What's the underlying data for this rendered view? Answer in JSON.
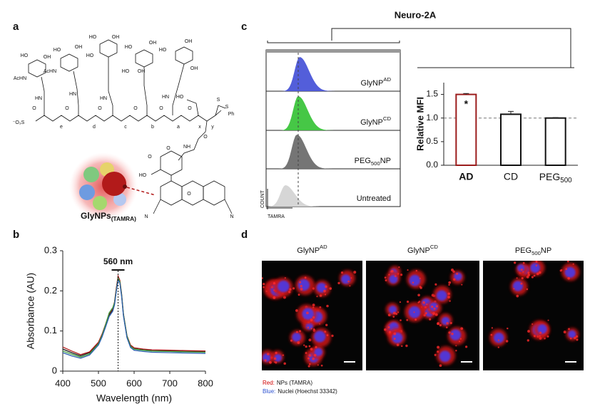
{
  "panel_labels": [
    "a",
    "b",
    "c",
    "d"
  ],
  "structure": {
    "atom_labels": [
      "HO",
      "OH",
      "AcHN",
      "HO",
      "OH",
      "AcHN",
      "HO",
      "OH",
      "HO",
      "OH",
      "HO",
      "OH",
      "HO",
      "OH",
      "HO",
      "OH",
      "HN",
      "HN",
      "HN",
      "HN",
      "O",
      "O",
      "O",
      "O",
      "O",
      "HO",
      "O",
      "S",
      "S",
      "Ph",
      "⁻O₃S",
      "e",
      "d",
      "c",
      "b",
      "a",
      "x",
      "y",
      "O",
      "NH",
      "O",
      "HO",
      "O",
      "N",
      "O",
      "N"
    ],
    "label": {
      "text": "GlyNPs",
      "sub": "(TAMRA)"
    }
  },
  "chart_data": [
    {
      "type": "line",
      "x_label": "Wavelength (nm)",
      "y_label": "Absorbance (AU)",
      "x": [
        400,
        425,
        450,
        475,
        500,
        510,
        520,
        530,
        540,
        545,
        550,
        555,
        560,
        565,
        570,
        580,
        590,
        600,
        625,
        650,
        700,
        750,
        800
      ],
      "series": [
        {
          "color": "#1a1a1a",
          "values": [
            0.055,
            0.046,
            0.038,
            0.046,
            0.071,
            0.09,
            0.114,
            0.14,
            0.153,
            0.168,
            0.203,
            0.233,
            0.222,
            0.188,
            0.14,
            0.085,
            0.063,
            0.056,
            0.053,
            0.051,
            0.05,
            0.049,
            0.048
          ]
        },
        {
          "color": "#b01c1c",
          "values": [
            0.06,
            0.05,
            0.041,
            0.048,
            0.072,
            0.092,
            0.117,
            0.143,
            0.156,
            0.172,
            0.207,
            0.237,
            0.226,
            0.192,
            0.143,
            0.088,
            0.065,
            0.058,
            0.055,
            0.053,
            0.052,
            0.051,
            0.05
          ]
        },
        {
          "color": "#3a9a3a",
          "values": [
            0.05,
            0.042,
            0.035,
            0.043,
            0.068,
            0.089,
            0.116,
            0.145,
            0.158,
            0.17,
            0.202,
            0.232,
            0.223,
            0.19,
            0.142,
            0.087,
            0.062,
            0.055,
            0.052,
            0.05,
            0.049,
            0.048,
            0.047
          ]
        },
        {
          "color": "#2c5fb0",
          "values": [
            0.046,
            0.038,
            0.032,
            0.04,
            0.065,
            0.085,
            0.11,
            0.136,
            0.149,
            0.165,
            0.198,
            0.228,
            0.219,
            0.186,
            0.138,
            0.083,
            0.059,
            0.052,
            0.049,
            0.047,
            0.046,
            0.045,
            0.044
          ]
        }
      ],
      "annotation": {
        "text": "560 nm",
        "x": 555
      },
      "xlim": [
        400,
        800
      ],
      "ylim": [
        0,
        0.3
      ],
      "xticks": [
        400,
        500,
        600,
        700,
        800
      ],
      "yticks": [
        0,
        0.1,
        0.2,
        0.3
      ]
    },
    {
      "type": "bar",
      "y_label": "Relative MFI",
      "categories": [
        "AD",
        "CD",
        {
          "text": "PEG",
          "sub": "500"
        }
      ],
      "values": [
        1.5,
        1.08,
        1.0
      ],
      "errors": [
        0.02,
        0.06,
        0.01
      ],
      "colors": [
        "#9b1c1c",
        "#111111",
        "#111111"
      ],
      "category_label_colors": [
        "#9b1c1c",
        "#111111",
        "#111111"
      ],
      "highlight": 0,
      "reference_line": 1.0,
      "annotation": {
        "text": "*",
        "category": 0
      },
      "ylim": [
        0,
        1.75
      ],
      "yticks": [
        {
          "value": 0,
          "label": "0.0"
        },
        {
          "value": 0.5,
          "label": "0.5"
        },
        {
          "value": 1,
          "label": "1.0"
        },
        {
          "value": 1.5,
          "label": "1.5"
        }
      ]
    }
  ],
  "flow": {
    "title": "Neuro-2A",
    "x_label": "TAMRA",
    "y_label": "COUNT",
    "histograms": [
      {
        "label": {
          "text": "GlyNP",
          "sup": "AD"
        },
        "color": "#4a55d8"
      },
      {
        "label": {
          "text": "GlyNP",
          "sup": "CD"
        },
        "color": "#3cc43c"
      },
      {
        "label": {
          "text": "PEG",
          "sub": "500",
          "tail": "NP"
        },
        "color": "#6e6e6e"
      },
      {
        "label": "Untreated",
        "color": "#d4d4d4"
      }
    ]
  },
  "microscopy": {
    "panels": [
      {
        "text": "GlyNP",
        "sup": "AD"
      },
      {
        "text": "GlyNP",
        "sup": "CD"
      },
      {
        "text": "PEG",
        "sub": "500",
        "tail": "NP"
      }
    ],
    "legend": [
      {
        "key": "Red:",
        "color": "#d00000",
        "text": "NPs (TAMRA)"
      },
      {
        "key": "Blue:",
        "color": "#2a4fd0",
        "text": "Nuclei (Hoechst 33342)"
      }
    ]
  }
}
